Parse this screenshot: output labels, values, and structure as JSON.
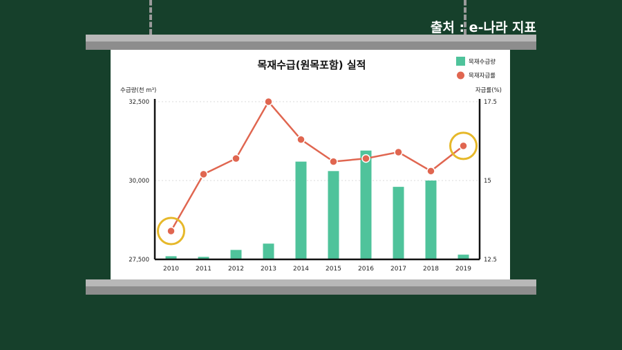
{
  "source": "출처 : e-나라 지표",
  "colors": {
    "background": "#16402b",
    "bar": "#4fc39b",
    "line": "#e06650",
    "highlight_ring": "#e6b82a"
  },
  "chart_data": {
    "type": "bar+line",
    "title": "목재수급(원목포함) 실적",
    "ylabel_left": "수급량(천 m³)",
    "ylabel_right": "자급률(%)",
    "categories": [
      "2010",
      "2011",
      "2012",
      "2013",
      "2014",
      "2015",
      "2016",
      "2017",
      "2018",
      "2019"
    ],
    "ylim_left": [
      27500,
      32500
    ],
    "ylim_right": [
      12.5,
      17.5
    ],
    "yticks_left": [
      "27,500",
      "30,000",
      "32,500"
    ],
    "yticks_right": [
      "12.5",
      "15",
      "17.5"
    ],
    "legend_position": "top-right",
    "series": [
      {
        "name": "목재수급량",
        "type": "bar",
        "values": [
          27600,
          27580,
          27800,
          28000,
          30600,
          30300,
          30950,
          29800,
          30000,
          27650
        ]
      },
      {
        "name": "목재자급률",
        "type": "line",
        "values": [
          13.4,
          15.2,
          15.7,
          17.5,
          16.3,
          15.6,
          15.7,
          15.9,
          15.3,
          16.1
        ]
      }
    ],
    "highlighted_categories": [
      "2010",
      "2019"
    ]
  }
}
